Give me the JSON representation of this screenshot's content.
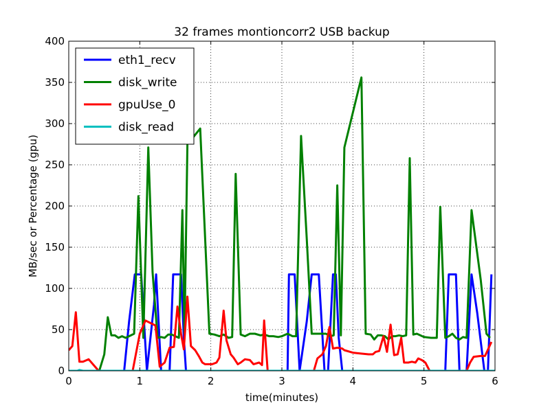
{
  "chart_data": {
    "type": "line",
    "title": "32 frames montioncorr2 USB backup",
    "xlabel": "time(minutes)",
    "ylabel": "MB/sec or Percentage (gpu)",
    "xlim": [
      0,
      6
    ],
    "ylim": [
      0,
      400
    ],
    "xticks": [
      "0",
      "1",
      "2",
      "3",
      "4",
      "5",
      "6"
    ],
    "yticks": [
      "0",
      "50",
      "100",
      "150",
      "200",
      "250",
      "300",
      "350",
      "400"
    ],
    "grid": true,
    "legend_position": "top-left",
    "series": [
      {
        "name": "eth1_recv",
        "color": "#0000ff",
        "x": [
          0,
          0.78,
          0.85,
          0.93,
          1.02,
          1.1,
          1.2,
          1.23,
          1.3,
          1.42,
          1.47,
          1.58,
          1.62,
          1.65,
          2.0,
          2.5,
          3.0,
          3.08,
          3.1,
          3.18,
          3.25,
          3.35,
          3.42,
          3.52,
          3.6,
          3.65,
          3.72,
          3.76,
          3.8,
          3.85,
          3.92,
          4.5,
          5.0,
          5.3,
          5.35,
          5.45,
          5.5,
          5.55,
          5.6,
          5.67,
          5.75,
          5.85,
          5.9,
          5.95
        ],
        "y": [
          0,
          0,
          60,
          117,
          117,
          0,
          80,
          117,
          0,
          0,
          117,
          117,
          40,
          0,
          0,
          0,
          0,
          0,
          117,
          117,
          0,
          60,
          117,
          117,
          0,
          0,
          117,
          117,
          40,
          0,
          0,
          0,
          0,
          0,
          117,
          117,
          0,
          0,
          0,
          117,
          70,
          0,
          0,
          117
        ]
      },
      {
        "name": "disk_write",
        "color": "#008000",
        "x": [
          0,
          0.43,
          0.5,
          0.55,
          0.6,
          0.65,
          0.7,
          0.75,
          0.8,
          0.85,
          0.92,
          0.98,
          1.05,
          1.12,
          1.18,
          1.25,
          1.3,
          1.35,
          1.4,
          1.45,
          1.5,
          1.55,
          1.6,
          1.63,
          1.67,
          1.72,
          1.85,
          1.98,
          2.05,
          2.12,
          2.18,
          2.25,
          2.3,
          2.35,
          2.42,
          2.48,
          2.55,
          2.62,
          2.7,
          2.75,
          2.82,
          2.88,
          2.95,
          3.0,
          3.08,
          3.15,
          3.2,
          3.27,
          3.35,
          3.42,
          3.48,
          3.55,
          3.62,
          3.68,
          3.73,
          3.78,
          3.83,
          3.88,
          4.12,
          4.18,
          4.25,
          4.3,
          4.35,
          4.4,
          4.45,
          4.5,
          4.55,
          4.6,
          4.65,
          4.7,
          4.75,
          4.8,
          4.85,
          4.9,
          4.95,
          5.0,
          5.1,
          5.18,
          5.23,
          5.3,
          5.35,
          5.4,
          5.45,
          5.5,
          5.55,
          5.6,
          5.67,
          5.8,
          5.88,
          5.93
        ],
        "y": [
          0,
          0,
          20,
          65,
          43,
          43,
          40,
          42,
          40,
          42,
          45,
          212,
          40,
          271,
          120,
          40,
          41,
          40,
          44,
          44,
          42,
          40,
          195,
          45,
          275,
          280,
          294,
          45,
          44,
          42,
          44,
          40,
          41,
          239,
          44,
          42,
          45,
          45,
          43,
          44,
          42,
          42,
          41,
          42,
          45,
          42,
          42,
          285,
          160,
          45,
          45,
          45,
          45,
          42,
          43,
          225,
          43,
          271,
          356,
          45,
          44,
          38,
          43,
          43,
          42,
          38,
          42,
          42,
          43,
          42,
          43,
          258,
          44,
          45,
          43,
          41,
          40,
          40,
          199,
          40,
          42,
          45,
          40,
          38,
          41,
          40,
          195,
          110,
          45,
          40
        ]
      },
      {
        "name": "gpuUse_0",
        "color": "#ff0000",
        "x": [
          0,
          0.05,
          0.1,
          0.15,
          0.2,
          0.28,
          0.35,
          0.42,
          0.5,
          0.9,
          1.0,
          1.08,
          1.15,
          1.22,
          1.28,
          1.35,
          1.42,
          1.48,
          1.53,
          1.58,
          1.62,
          1.67,
          1.72,
          1.78,
          1.83,
          1.88,
          1.92,
          1.98,
          2.02,
          2.08,
          2.12,
          2.18,
          2.22,
          2.28,
          2.32,
          2.38,
          2.42,
          2.48,
          2.55,
          2.6,
          2.68,
          2.72,
          2.75,
          2.8,
          3.45,
          3.5,
          3.57,
          3.62,
          3.67,
          3.72,
          3.78,
          3.85,
          3.88,
          4.0,
          4.1,
          4.22,
          4.28,
          4.32,
          4.37,
          4.43,
          4.48,
          4.53,
          4.58,
          4.63,
          4.68,
          4.72,
          4.78,
          4.83,
          4.88,
          4.92,
          4.97,
          5.02,
          5.08,
          5.6,
          5.65,
          5.7,
          5.8,
          5.86,
          5.95
        ],
        "y": [
          25,
          30,
          71,
          11,
          11,
          14,
          7,
          0,
          0,
          0,
          45,
          61,
          58,
          55,
          5,
          10,
          28,
          29,
          78,
          45,
          26,
          90,
          30,
          25,
          18,
          10,
          8,
          8,
          8,
          10,
          16,
          73,
          37,
          20,
          16,
          8,
          10,
          14,
          13,
          8,
          10,
          7,
          61,
          0,
          0,
          15,
          20,
          30,
          53,
          27,
          28,
          27,
          25,
          22,
          21,
          20,
          20,
          23,
          24,
          42,
          23,
          56,
          19,
          20,
          40,
          10,
          10,
          11,
          10,
          15,
          13,
          10,
          0,
          0,
          10,
          17,
          18,
          18,
          35
        ]
      },
      {
        "name": "disk_read",
        "color": "#00bfbf",
        "x": [
          0,
          0.12,
          0.15,
          0.2,
          6
        ],
        "y": [
          0,
          0,
          1,
          0,
          0
        ]
      }
    ]
  }
}
